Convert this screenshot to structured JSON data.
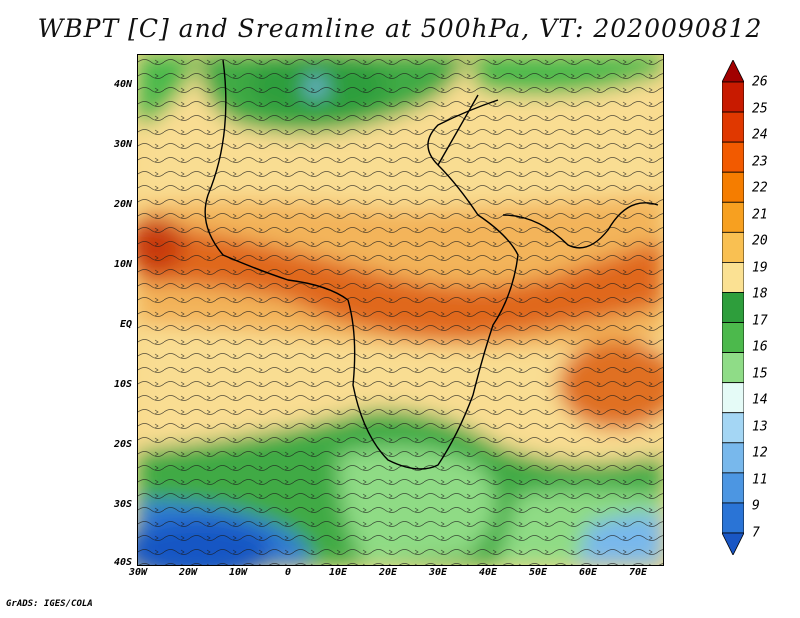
{
  "title": "WBPT [C] and Sreamline at 500hPa, VT: 2020090812",
  "footer": "GrADS: IGES/COLA",
  "axes": {
    "lat_labels": [
      "40N",
      "30N",
      "20N",
      "10N",
      "EQ",
      "10S",
      "20S",
      "30S",
      "40S"
    ],
    "lon_labels": [
      "30W",
      "20W",
      "10W",
      "0",
      "10E",
      "20E",
      "30E",
      "40E",
      "50E",
      "60E",
      "70E"
    ],
    "lat_range": [
      -40,
      45
    ],
    "lon_range": [
      -30,
      75
    ]
  },
  "colorbar": {
    "labels": [
      "26",
      "25",
      "24",
      "23",
      "22",
      "21",
      "20",
      "19",
      "18",
      "17",
      "16",
      "15",
      "14",
      "13",
      "12",
      "11",
      "9",
      "7"
    ],
    "colors": [
      "#a10000",
      "#c81a00",
      "#e03800",
      "#f25a00",
      "#f57d00",
      "#f7a020",
      "#f9c052",
      "#fbe193",
      "#2e9e3c",
      "#4cb94c",
      "#8fdc87",
      "#e5fbf7",
      "#a4d6f4",
      "#78b8ec",
      "#4c96e2",
      "#2a74d6",
      "#1956c4"
    ]
  },
  "colors": {
    "warm_band": "#e0671e",
    "tropical": "#f3b45a",
    "subtropical": "#f9dd92",
    "green": "#3faa44",
    "light_green": "#8fdb85",
    "cold": "#2f79d4"
  }
}
